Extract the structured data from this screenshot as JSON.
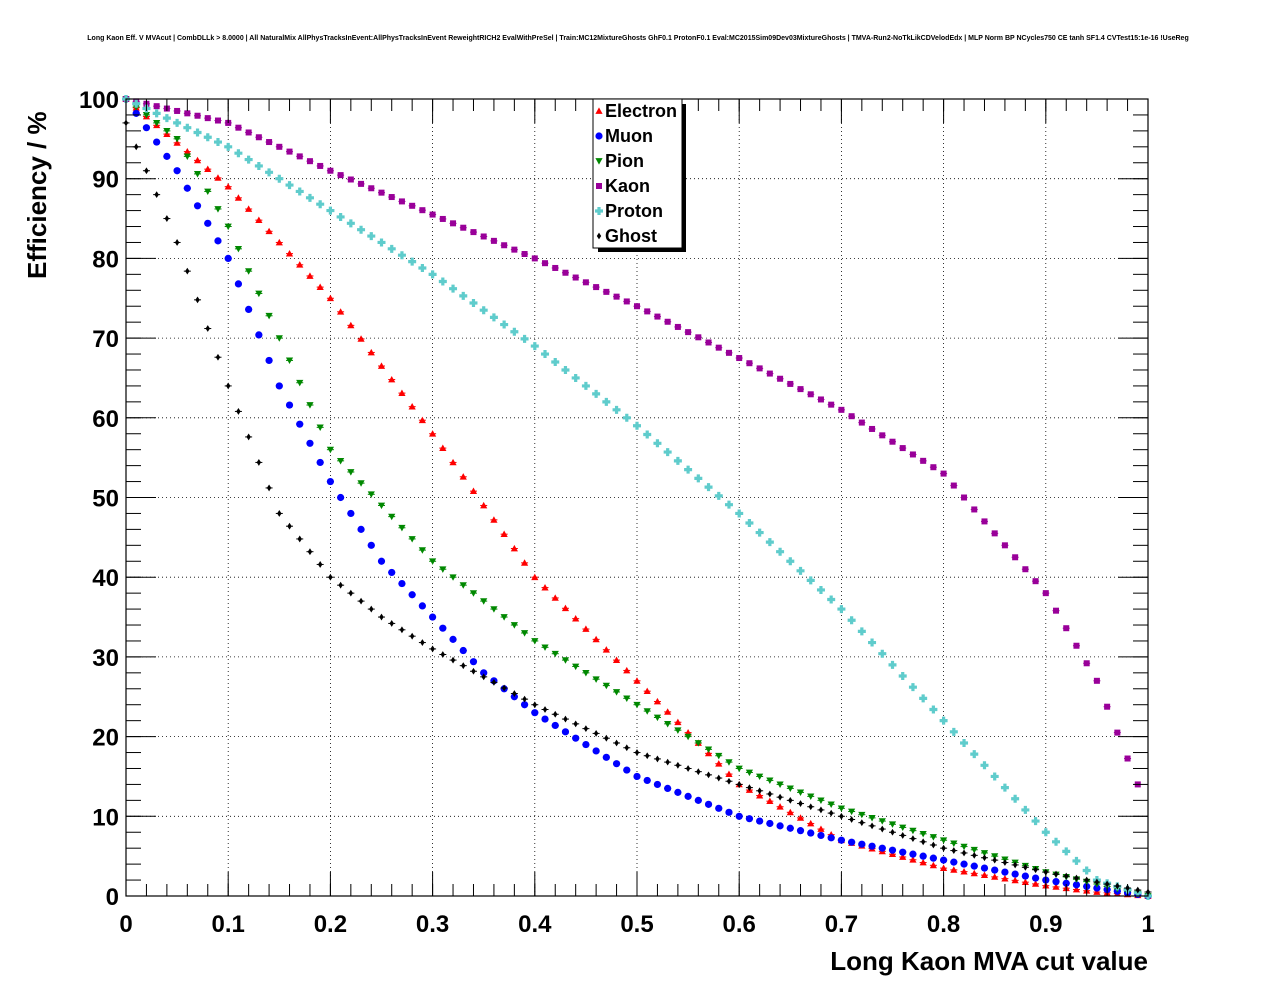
{
  "chart_data": {
    "type": "scatter",
    "title": "Long Kaon Eff. V MVAcut | CombDLLk > 8.0000 | All NaturalMix AllPhysTracksInEvent:AllPhysTracksInEvent ReweightRICH2 EvalWithPreSel | Train:MC12MixtureGhosts GhF0.1 ProtonF0.1 Eval:MC2015Sim09Dev03MixtureGhosts | TMVA-Run2-NoTkLikCDVelodEdx | MLP Norm BP NCycles750 CE tanh SF1.4 CVTest15:1e-16 !UseReg",
    "xlabel": "Long Kaon MVA cut value",
    "ylabel": "Efficiency / %",
    "xlim": [
      0,
      1
    ],
    "ylim": [
      0,
      100
    ],
    "x_ticks": [
      "0",
      "0.1",
      "0.2",
      "0.3",
      "0.4",
      "0.5",
      "0.6",
      "0.7",
      "0.8",
      "0.9",
      "1"
    ],
    "y_ticks": [
      "0",
      "10",
      "20",
      "30",
      "40",
      "50",
      "60",
      "70",
      "80",
      "90",
      "100"
    ],
    "grid": true,
    "legend_position": "top-center",
    "series": [
      {
        "name": "Electron",
        "color": "#ff0000",
        "marker": "triangle-up",
        "x": [
          0,
          0.1,
          0.2,
          0.3,
          0.4,
          0.5,
          0.55,
          0.6,
          0.7,
          0.8,
          0.9,
          0.95,
          1.0
        ],
        "y": [
          100,
          89,
          75,
          58,
          40,
          27,
          20.5,
          14,
          7,
          3.5,
          1.3,
          0.5,
          0
        ]
      },
      {
        "name": "Muon",
        "color": "#0000ff",
        "marker": "circle",
        "x": [
          0,
          0.05,
          0.1,
          0.15,
          0.2,
          0.25,
          0.3,
          0.35,
          0.4,
          0.5,
          0.6,
          0.7,
          0.8,
          0.9,
          1.0
        ],
        "y": [
          100,
          91,
          80,
          64,
          52,
          42,
          35,
          28,
          23,
          15,
          10,
          7,
          4.5,
          2,
          0
        ]
      },
      {
        "name": "Pion",
        "color": "#008800",
        "marker": "triangle-down",
        "x": [
          0,
          0.05,
          0.1,
          0.15,
          0.2,
          0.3,
          0.4,
          0.5,
          0.6,
          0.7,
          0.8,
          0.9,
          1.0
        ],
        "y": [
          100,
          95,
          84,
          70,
          56,
          42,
          32,
          24,
          16,
          11,
          7,
          3,
          0
        ]
      },
      {
        "name": "Kaon",
        "color": "#990099",
        "marker": "square",
        "x": [
          0,
          0.1,
          0.2,
          0.3,
          0.4,
          0.5,
          0.6,
          0.7,
          0.8,
          0.9,
          0.95,
          0.99
        ],
        "y": [
          100,
          97,
          91,
          85.5,
          80,
          74,
          67.5,
          61,
          53,
          38,
          27,
          14
        ]
      },
      {
        "name": "Proton",
        "color": "#5fcccc",
        "marker": "cross",
        "x": [
          0,
          0.1,
          0.2,
          0.3,
          0.4,
          0.5,
          0.6,
          0.7,
          0.8,
          0.9,
          0.95,
          1.0
        ],
        "y": [
          100,
          94,
          86,
          78,
          69,
          59,
          48,
          36,
          22,
          8,
          2,
          0
        ]
      },
      {
        "name": "Ghost",
        "color": "#000000",
        "marker": "diamond",
        "x": [
          0,
          0.05,
          0.1,
          0.15,
          0.2,
          0.25,
          0.3,
          0.4,
          0.5,
          0.6,
          0.7,
          0.8,
          0.9,
          1.0
        ],
        "y": [
          97,
          82,
          64,
          48,
          40,
          35,
          31,
          24,
          18,
          14,
          10,
          6,
          3,
          0.5
        ]
      }
    ]
  }
}
